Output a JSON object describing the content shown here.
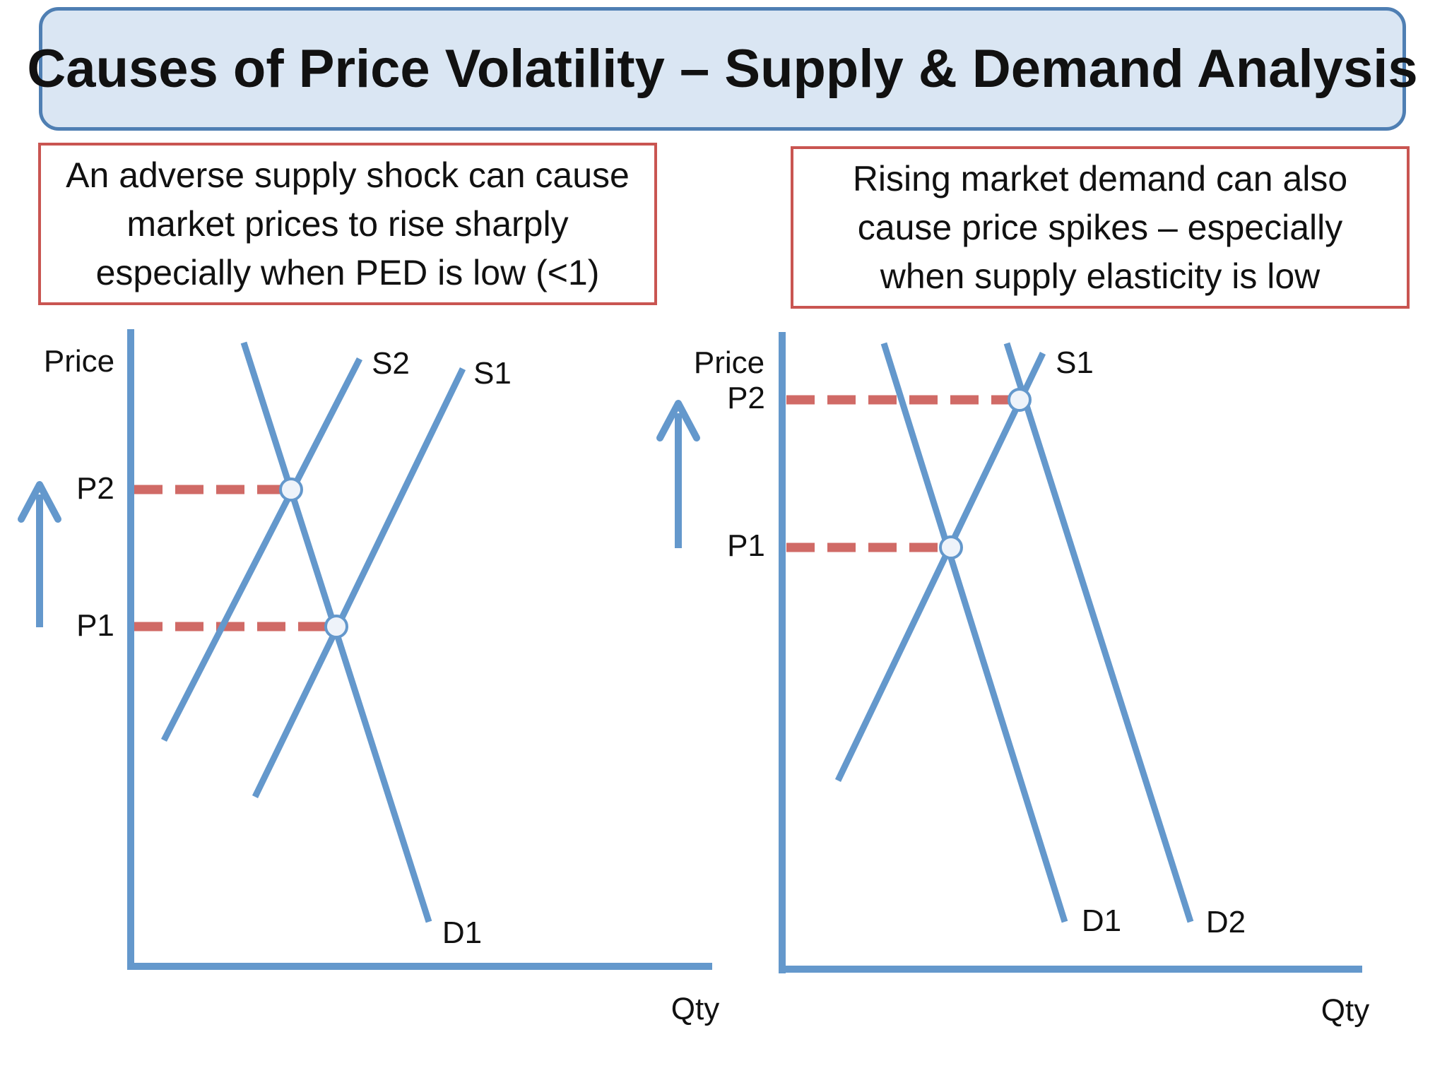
{
  "title": "Causes of Price Volatility – Supply & Demand Analysis",
  "colors": {
    "curve": "#6498cc",
    "dashed_guide": "#d06a66",
    "note_border": "#c95551",
    "title_fill": "#dae6f3",
    "title_border": "#4f7fb3",
    "point_fill": "#eef3fa"
  },
  "left_panel": {
    "note_lines": [
      "An adverse supply shock can cause",
      "market prices to rise sharply",
      "especially when PED is low (<1)"
    ],
    "y_axis_label": "Price",
    "x_axis_label": "Qty",
    "price_labels": {
      "p1": "P1",
      "p2": "P2"
    },
    "curve_labels": {
      "s1": "S1",
      "s2": "S2",
      "d1": "D1"
    },
    "arrow_icon": "up-arrow-icon"
  },
  "right_panel": {
    "note_lines": [
      "Rising market demand can also",
      "cause price spikes – especially",
      "when supply elasticity is low"
    ],
    "y_axis_label": "Price",
    "x_axis_label": "Qty",
    "price_labels": {
      "p1": "P1",
      "p2": "P2"
    },
    "curve_labels": {
      "s1": "S1",
      "d1": "D1",
      "d2": "D2"
    },
    "arrow_icon": "up-arrow-icon"
  }
}
